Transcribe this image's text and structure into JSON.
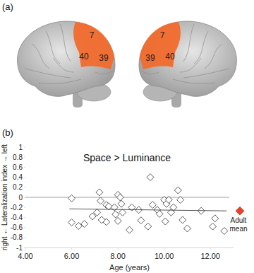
{
  "panel_labels": [
    "(a)",
    "(b)"
  ],
  "region_labels": [
    [
      "7",
      "40",
      "39"
    ],
    [
      "7",
      "39",
      "40"
    ]
  ],
  "chart_data": {
    "type": "scatter",
    "title": "Space > Luminance",
    "x_label": "Age (years)",
    "y_label": "right ← Lateralization index → left",
    "xlim": [
      4,
      13
    ],
    "xticks": [
      {
        "value": 4,
        "label": "4.00"
      },
      {
        "value": 6,
        "label": "6.00"
      },
      {
        "value": 8,
        "label": "8.00"
      },
      {
        "value": 10,
        "label": "10.00"
      },
      {
        "value": 12,
        "label": "12.00"
      }
    ],
    "ylim": [
      -1,
      1
    ],
    "yticks": [
      -1,
      -0.8,
      -0.6,
      -0.4,
      -0.2,
      0,
      0.2,
      0.4,
      0.6,
      0.8,
      1
    ],
    "grid": false,
    "series": [
      {
        "type": "scatter",
        "marker": "open-diamond",
        "color": "#555555",
        "x": [
          6.0,
          6.0,
          6.3,
          6.55,
          6.9,
          7.1,
          7.2,
          7.25,
          7.5,
          7.6,
          7.5,
          7.3,
          7.9,
          7.85,
          8.0,
          8.1,
          8.15,
          8.2,
          8.0,
          8.5,
          8.6,
          8.9,
          9.0,
          9.4,
          9.5,
          9.3,
          9.7,
          9.8,
          10.0,
          10.1,
          10.2,
          10.05,
          10.3,
          10.4,
          10.6,
          10.7,
          10.8,
          11.0,
          11.6,
          12.1,
          12.2,
          12.6
        ],
        "values": [
          -0.02,
          -0.5,
          -0.57,
          -0.53,
          -0.38,
          -0.3,
          0.1,
          -0.07,
          -0.15,
          -0.18,
          -0.49,
          -0.45,
          -0.34,
          -0.2,
          0.05,
          0.0,
          -0.13,
          -0.3,
          -0.47,
          -0.65,
          -0.2,
          -0.25,
          -0.46,
          0.4,
          -0.15,
          -0.58,
          -0.25,
          -0.33,
          -0.05,
          -0.13,
          -0.05,
          -0.48,
          -0.3,
          -0.2,
          0.14,
          -0.05,
          -0.45,
          -0.62,
          -0.27,
          -0.58,
          -0.42,
          -0.67
        ]
      },
      {
        "type": "line",
        "color": "#555555",
        "x": [
          5.9,
          12.7
        ],
        "values": [
          -0.23,
          -0.27
        ]
      }
    ],
    "annotations": [
      {
        "label": "Adult mean",
        "y": -0.27,
        "color": "#e8432a",
        "marker": "diamond"
      }
    ]
  }
}
